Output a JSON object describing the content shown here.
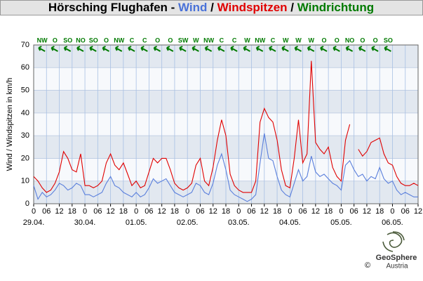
{
  "title_prefix": "Hörsching Flughafen - ",
  "title_separator": " / ",
  "logo": {
    "name": "GeoSphere",
    "sub": "Austria",
    "copyright": "©"
  },
  "chart_data": {
    "type": "line",
    "y_label": "Wind / Windspitzen in km/h",
    "x": [
      0,
      2,
      4,
      6,
      8,
      10,
      12,
      14,
      16,
      18,
      20,
      22,
      24,
      26,
      28,
      30,
      32,
      34,
      36,
      38,
      40,
      42,
      44,
      46,
      48,
      50,
      52,
      54,
      56,
      58,
      60,
      62,
      64,
      66,
      68,
      70,
      72,
      74,
      76,
      78,
      80,
      82,
      84,
      86,
      88,
      90,
      92,
      94,
      96,
      98,
      100,
      102,
      104,
      106,
      108,
      110,
      112,
      114,
      116,
      118,
      120,
      122,
      124,
      126,
      128,
      130,
      132,
      134,
      136,
      138,
      140,
      142,
      144,
      146,
      148,
      150,
      152,
      154,
      156,
      158,
      160,
      162,
      164,
      166,
      168,
      170,
      172,
      174,
      176,
      178,
      180
    ],
    "series": [
      {
        "name": "Wind",
        "color": "#5a7fdc",
        "values": [
          8,
          2,
          5,
          3,
          4,
          6,
          9,
          8,
          6,
          7,
          9,
          8,
          4,
          4,
          3,
          4,
          5,
          9,
          12,
          8,
          7,
          5,
          4,
          3,
          5,
          3,
          4,
          7,
          11,
          9,
          10,
          11,
          8,
          5,
          4,
          3,
          4,
          5,
          9,
          8,
          5,
          4,
          9,
          17,
          22,
          15,
          6,
          4,
          3,
          2,
          1,
          2,
          4,
          18,
          31,
          20,
          19,
          12,
          6,
          4,
          3,
          9,
          15,
          10,
          12,
          21,
          14,
          12,
          13,
          11,
          9,
          8,
          6,
          17,
          19,
          15,
          12,
          13,
          10,
          12,
          11,
          16,
          11,
          9,
          10,
          6,
          4,
          5,
          4,
          3,
          3
        ]
      },
      {
        "name": "Windspitzen",
        "color": "#e00000",
        "values": [
          12,
          10,
          7,
          5,
          6,
          9,
          14,
          23,
          20,
          15,
          14,
          22,
          8,
          8,
          7,
          8,
          10,
          18,
          22,
          17,
          15,
          18,
          13,
          8,
          10,
          7,
          8,
          14,
          20,
          18,
          20,
          20,
          15,
          9,
          7,
          6,
          7,
          9,
          17,
          20,
          10,
          8,
          16,
          28,
          37,
          30,
          13,
          8,
          6,
          5,
          5,
          5,
          10,
          36,
          42,
          38,
          36,
          28,
          15,
          8,
          7,
          20,
          37,
          18,
          22,
          63,
          27,
          24,
          22,
          25,
          16,
          12,
          10,
          28,
          35,
          null,
          24,
          21,
          23,
          27,
          28,
          29,
          22,
          18,
          17,
          12,
          9,
          8,
          8,
          9,
          8
        ]
      }
    ],
    "directions": {
      "name": "Windrichtung",
      "color": "#007a00",
      "x": [
        4,
        10,
        16,
        22,
        28,
        34,
        40,
        46,
        52,
        58,
        64,
        70,
        76,
        82,
        88,
        94,
        100,
        106,
        112,
        118,
        124,
        130,
        136,
        142,
        148,
        154,
        160,
        166
      ],
      "labels": [
        "NW",
        "O",
        "SO",
        "NO",
        "SO",
        "O",
        "NW",
        "C",
        "C",
        "O",
        "O",
        "SW",
        "W",
        "NW",
        "C",
        "C",
        "W",
        "NW",
        "C",
        "W",
        "W",
        "W",
        "O",
        "O",
        "NO",
        "O",
        "O",
        "SO"
      ]
    },
    "xlim": [
      0,
      180
    ],
    "ylim": [
      0,
      70
    ],
    "yticks": [
      0,
      10,
      20,
      30,
      40,
      50,
      60,
      70
    ],
    "xticks": [
      0,
      {
        "value": 6,
        "label": "06"
      },
      12,
      18,
      {
        "value": 24,
        "label": "0"
      },
      {
        "value": 30,
        "label": "06"
      },
      {
        "value": 36,
        "label": "12"
      },
      {
        "value": 42,
        "label": "18"
      },
      {
        "value": 48,
        "label": "0"
      },
      {
        "value": 54,
        "label": "06"
      },
      {
        "value": 60,
        "label": "12"
      },
      {
        "value": 66,
        "label": "18"
      },
      {
        "value": 72,
        "label": "0"
      },
      {
        "value": 78,
        "label": "06"
      },
      {
        "value": 84,
        "label": "12"
      },
      {
        "value": 90,
        "label": "18"
      },
      {
        "value": 96,
        "label": "0"
      },
      {
        "value": 102,
        "label": "06"
      },
      {
        "value": 108,
        "label": "12"
      },
      {
        "value": 114,
        "label": "18"
      },
      {
        "value": 120,
        "label": "0"
      },
      {
        "value": 126,
        "label": "06"
      },
      {
        "value": 132,
        "label": "12"
      },
      {
        "value": 138,
        "label": "18"
      },
      {
        "value": 144,
        "label": "0"
      },
      {
        "value": 150,
        "label": "06"
      },
      {
        "value": 156,
        "label": "12"
      },
      {
        "value": 162,
        "label": "18"
      },
      {
        "value": 168,
        "label": "0"
      },
      {
        "value": 174,
        "label": "06"
      },
      {
        "value": 180,
        "label": "12"
      }
    ],
    "date_ticks": [
      {
        "value": 0,
        "label": "29.04."
      },
      {
        "value": 24,
        "label": "30.04."
      },
      {
        "value": 48,
        "label": "01.05."
      },
      {
        "value": 72,
        "label": "02.05."
      },
      {
        "value": 96,
        "label": "03.05."
      },
      {
        "value": 120,
        "label": "04.05."
      },
      {
        "value": 144,
        "label": "05.05."
      },
      {
        "value": 168,
        "label": "06.05."
      }
    ],
    "grid": true,
    "bands": true
  }
}
